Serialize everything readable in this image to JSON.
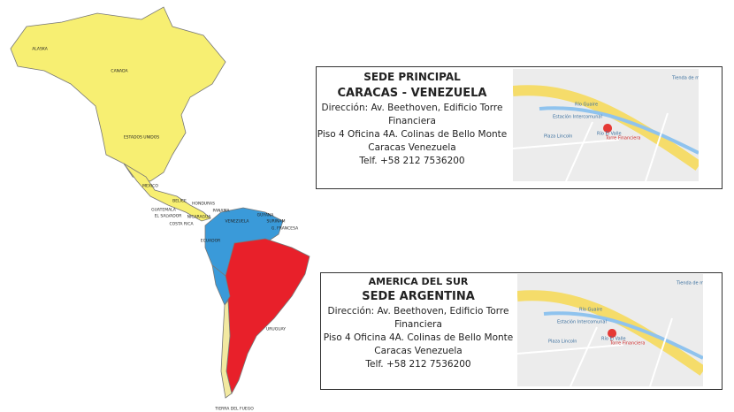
{
  "map": {
    "labels": [
      "ALASKA",
      "CANADA",
      "ESTADOS UNIDOS",
      "MEXICO",
      "BELICE",
      "HONDURAS",
      "GUATEMALA",
      "EL SALVADOR",
      "NICARAGUA",
      "COSTA RICA",
      "PANAMA",
      "VENEZUELA",
      "GUYANA",
      "SURINAM",
      "G. FRANCESA",
      "ECUADOR",
      "URUGUAY",
      "TIERRA DEL FUEGO"
    ]
  },
  "offices": [
    {
      "heading": [
        "SEDE PRINCIPAL",
        "CARACAS - VENEZUELA"
      ],
      "lines": [
        "Dirección: Av. Beethoven, Edificio Torre",
        "Financiera",
        "Piso 4 Oficina 4A. Colinas de Bello Monte",
        "Caracas Venezuela",
        "Telf. +58 212 7536200"
      ],
      "map_labels": [
        "Tienda de moda",
        "Río Guaire",
        "Estación Intercomunal",
        "Plaza Lincoln",
        "Río El Valle",
        "Torre Financiera"
      ]
    },
    {
      "heading": [
        "AMERICA DEL SUR",
        "SEDE ARGENTINA"
      ],
      "lines": [
        "Dirección: Av. Beethoven, Edificio Torre",
        "Financiera",
        "Piso 4 Oficina 4A. Colinas de Bello Monte",
        "Caracas Venezuela",
        "Telf. +58 212 7536200"
      ],
      "map_labels": [
        "Tienda de moda",
        "Río Guaire",
        "Estación Intercomunal",
        "Plaza Lincoln",
        "Río El Valle",
        "Torre Financiera"
      ]
    }
  ]
}
